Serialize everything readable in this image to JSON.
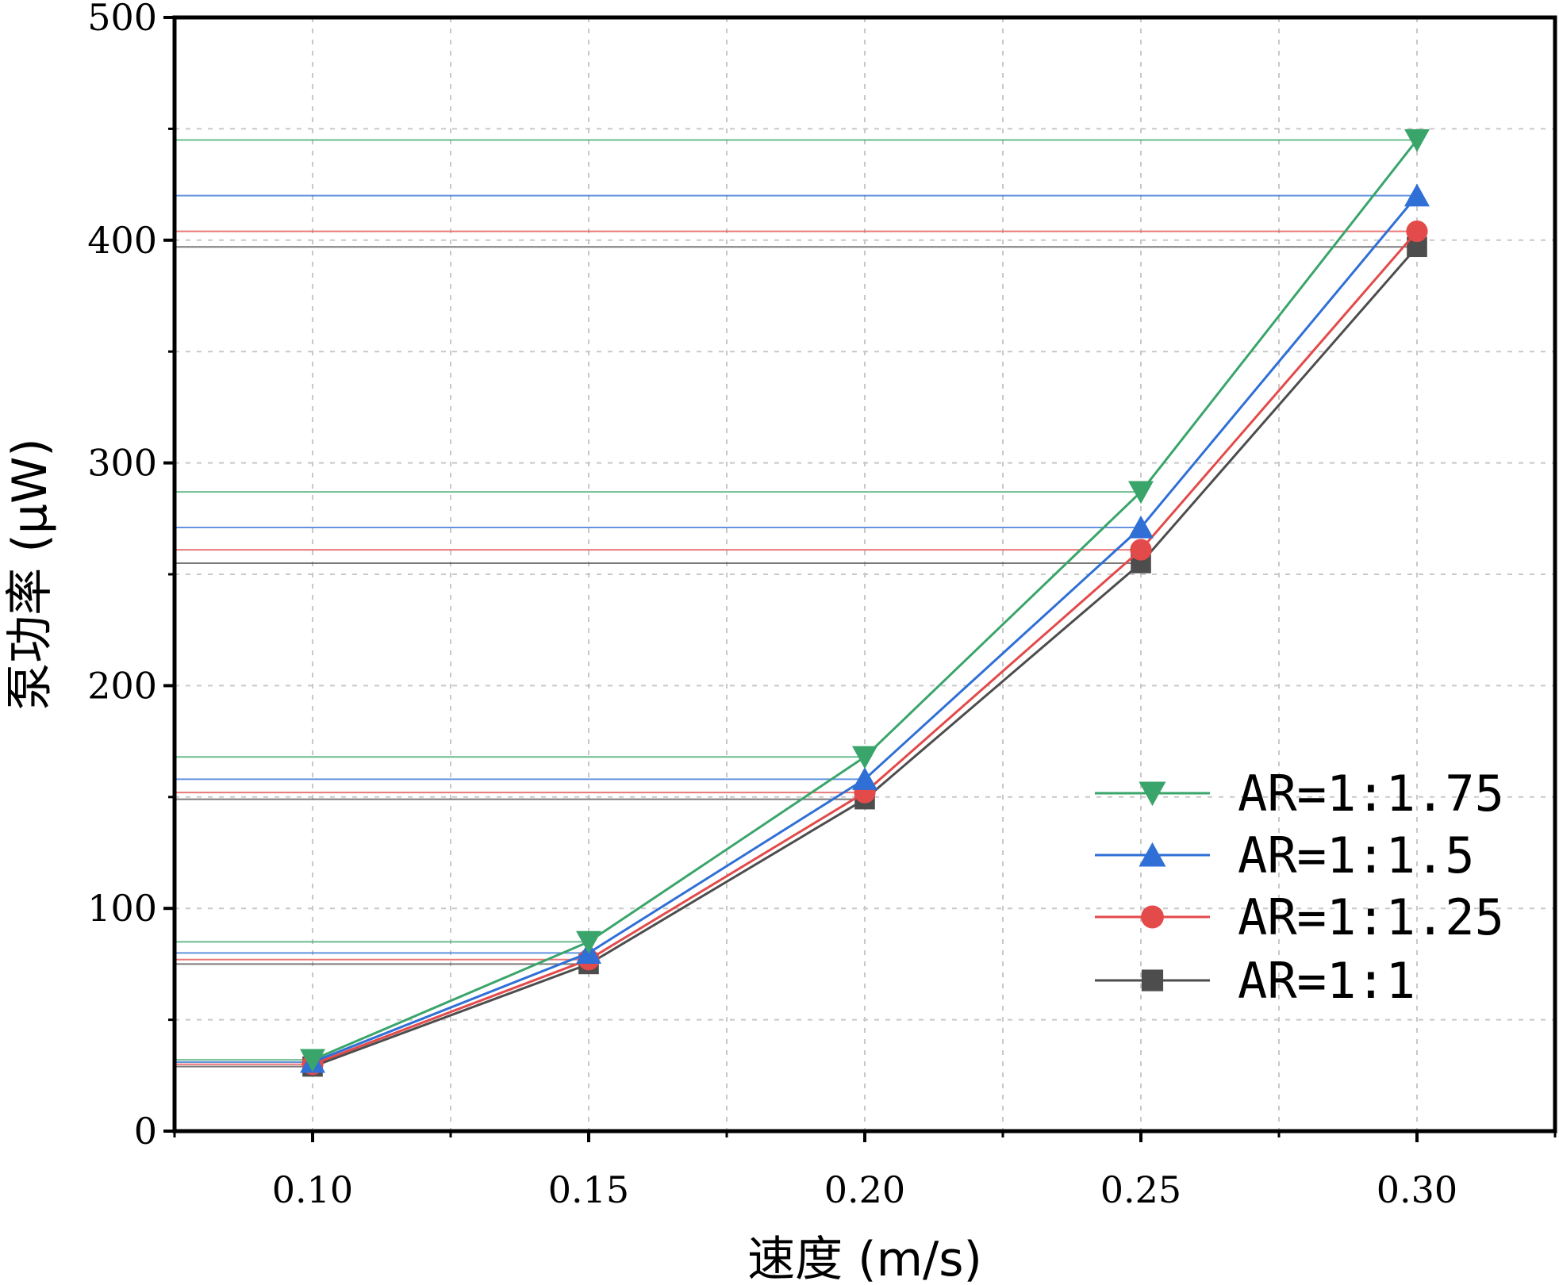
{
  "chart_data": {
    "type": "line",
    "title": "",
    "xlabel": "速度 (m/s)",
    "ylabel": "泵功率 (μW)",
    "x": [
      0.1,
      0.15,
      0.2,
      0.25,
      0.3
    ],
    "x_tick_labels": [
      "0.10",
      "0.15",
      "0.20",
      "0.25",
      "0.30"
    ],
    "y_ticks": [
      0,
      100,
      200,
      300,
      400,
      500
    ],
    "y_tick_labels": [
      "0",
      "100",
      "200",
      "300",
      "400",
      "500"
    ],
    "xlim": [
      0.075,
      0.325
    ],
    "ylim": [
      0,
      500
    ],
    "grid": true,
    "legend_position": "lower-right",
    "series": [
      {
        "name": "AR=1:1.75",
        "color": "#3aa56a",
        "marker": "triangle-down",
        "values": [
          32,
          85,
          168,
          287,
          445
        ]
      },
      {
        "name": "AR=1:1.5",
        "color": "#2f6fd6",
        "marker": "triangle-up",
        "values": [
          31,
          80,
          158,
          271,
          420
        ]
      },
      {
        "name": "AR=1:1.25",
        "color": "#e34a4a",
        "marker": "circle",
        "values": [
          30,
          77,
          152,
          261,
          404
        ]
      },
      {
        "name": "AR=1:1",
        "color": "#4d4d4d",
        "marker": "square",
        "values": [
          29,
          75,
          149,
          255,
          397
        ]
      }
    ]
  }
}
